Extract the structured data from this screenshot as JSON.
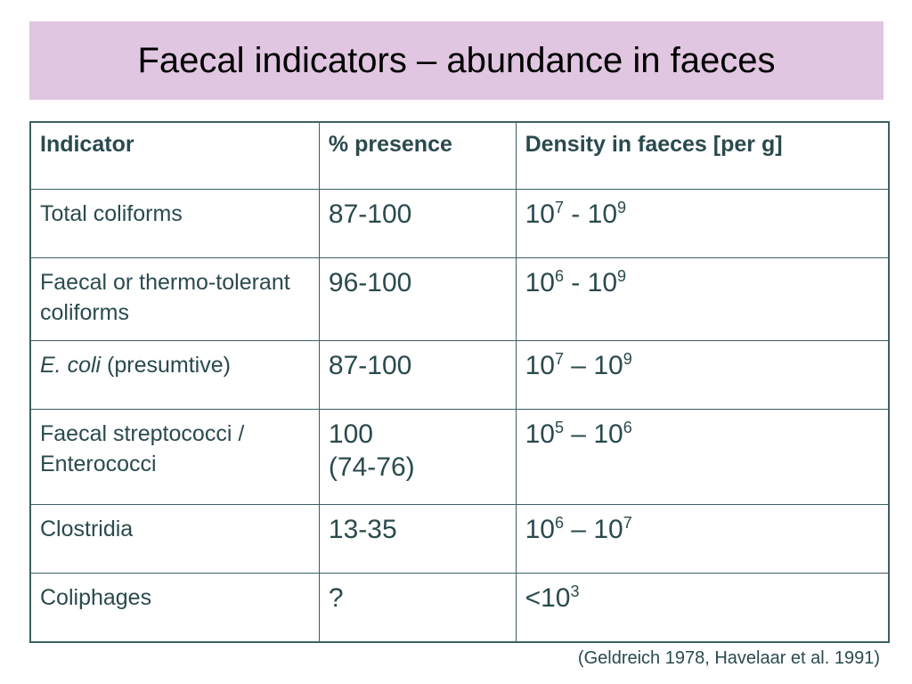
{
  "title": "Faecal indicators – abundance in faeces",
  "table": {
    "headers": [
      "Indicator",
      "% presence",
      "Density in faeces [per g]"
    ],
    "rows": [
      {
        "indicator": "Total coliforms",
        "presence": "87-100",
        "density": {
          "base1": "10",
          "exp1": "7",
          "sep": " - ",
          "base2": "10",
          "exp2": "9"
        }
      },
      {
        "indicator": "Faecal or thermo-tolerant coliforms",
        "presence": "96-100",
        "density": {
          "base1": "10",
          "exp1": "6",
          "sep": " - ",
          "base2": "10",
          "exp2": "9"
        }
      },
      {
        "indicator_italic": "E. coli",
        "indicator_rest": " (presumtive)",
        "presence": "87-100",
        "density": {
          "base1": "10",
          "exp1": "7",
          "sep": " – ",
          "base2": "10",
          "exp2": "9"
        }
      },
      {
        "indicator": "Faecal streptococci / Enterococci",
        "presence_line1": "100",
        "presence_line2": "(74-76)",
        "density": {
          "base1": "10",
          "exp1": "5",
          "sep": " – ",
          "base2": "10",
          "exp2": "6"
        }
      },
      {
        "indicator": "Clostridia",
        "presence": "13-35",
        "density": {
          "base1": "10",
          "exp1": "6",
          "sep": " – ",
          "base2": "10",
          "exp2": "7"
        }
      },
      {
        "indicator": "Coliphages",
        "presence": "?",
        "density": {
          "base1": "<10",
          "exp1": "3"
        }
      }
    ]
  },
  "citation": "(Geldreich 1978, Havelaar et al. 1991)",
  "colors": {
    "title_band": "#e0c6e0",
    "table_text": "#2a4a4d",
    "table_border": "#3d5f62"
  }
}
